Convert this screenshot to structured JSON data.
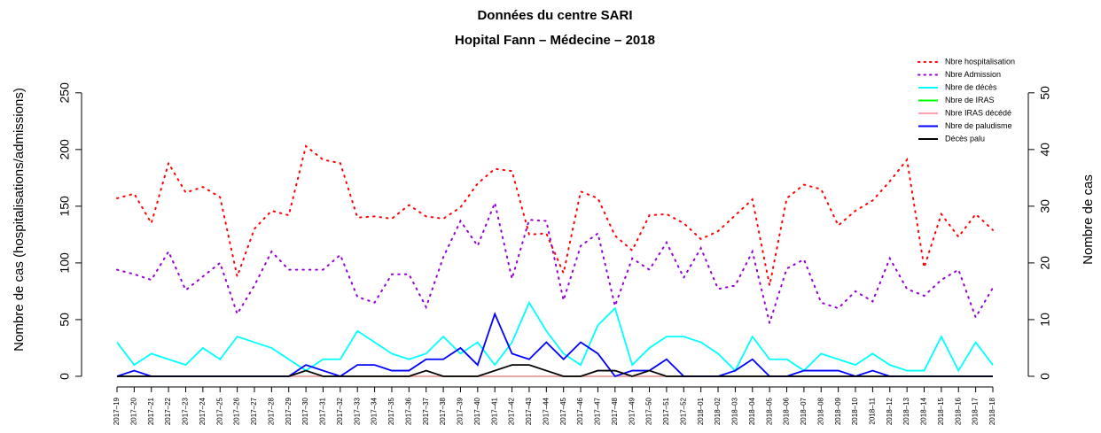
{
  "chart_data": {
    "type": "line",
    "title": "Données du centre SARI",
    "subtitle": "Hopital Fann – Médecine – 2018",
    "y_label": "Nombre de cas (hospitalisations/admissions)",
    "y2_label": "Nombre de cas",
    "categories": [
      "2017–19",
      "2017–20",
      "2017–21",
      "2017–22",
      "2017–23",
      "2017–24",
      "2017–25",
      "2017–26",
      "2017–27",
      "2017–28",
      "2017–29",
      "2017–30",
      "2017–31",
      "2017–32",
      "2017–33",
      "2017–34",
      "2017–35",
      "2017–36",
      "2017–37",
      "2017–38",
      "2017–39",
      "2017–40",
      "2017–41",
      "2017–42",
      "2017–43",
      "2017–44",
      "2017–45",
      "2017–46",
      "2017–47",
      "2017–48",
      "2017–49",
      "2017–50",
      "2017–51",
      "2017–52",
      "2018–01",
      "2018–02",
      "2018–03",
      "2018–04",
      "2018–05",
      "2018–06",
      "2018–07",
      "2018–08",
      "2018–09",
      "2018–10",
      "2018–11",
      "2018–12",
      "2018–13",
      "2018–14",
      "2018–15",
      "2018–16",
      "2018–17",
      "2018–18"
    ],
    "ylim": [
      -9.4,
      285
    ],
    "yticks": [
      0,
      50,
      100,
      150,
      200,
      250
    ],
    "y2lim": [
      -1.88,
      57
    ],
    "y2ticks": [
      0,
      10,
      20,
      30,
      40,
      50
    ],
    "legend": "top-right",
    "series": [
      {
        "name": "Nbre hospitalisation",
        "color": "#ff0000",
        "dash": "dotted",
        "values": [
          157,
          161,
          135,
          188,
          162,
          167,
          158,
          88,
          130,
          146,
          142,
          203,
          191,
          188,
          140,
          141,
          139,
          151,
          141,
          139,
          149,
          170,
          183,
          181,
          125,
          126,
          91,
          163,
          157,
          124,
          111,
          142,
          143,
          135,
          121,
          128,
          142,
          156,
          80,
          157,
          169,
          165,
          133,
          146,
          155,
          172,
          191,
          96,
          143,
          123,
          143,
          129
        ]
      },
      {
        "name": "Nbre Admission",
        "color": "#9400d3",
        "dash": "dotted",
        "values": [
          94,
          90,
          85,
          110,
          76,
          88,
          100,
          55,
          80,
          110,
          94,
          94,
          94,
          107,
          70,
          65,
          90,
          90,
          61,
          105,
          137,
          115,
          153,
          86,
          138,
          137,
          67,
          115,
          126,
          62,
          104,
          94,
          118,
          87,
          113,
          77,
          80,
          110,
          47,
          95,
          103,
          65,
          60,
          75,
          66,
          104,
          77,
          71,
          85,
          94,
          52,
          78
        ]
      },
      {
        "name": "Nbre de décès",
        "color": "#00ffff",
        "axis": "y2",
        "values": [
          6,
          2,
          4,
          3,
          2,
          5,
          3,
          7,
          6,
          5,
          3,
          1,
          3,
          3,
          8,
          6,
          4,
          3,
          4,
          7,
          4,
          6,
          2,
          6,
          13,
          8,
          4,
          2,
          9,
          12,
          2,
          5,
          7,
          7,
          6,
          4,
          1,
          7,
          3,
          3,
          1,
          4,
          3,
          2,
          4,
          2,
          1,
          1,
          7,
          1,
          6,
          2
        ]
      },
      {
        "name": "Nbre de IRAS",
        "color": "#00ff00",
        "axis": "y2",
        "values": [
          0,
          0,
          0,
          0,
          0,
          0,
          0,
          0,
          0,
          0,
          0,
          0,
          0,
          0,
          0,
          0,
          0,
          0,
          0,
          0,
          0,
          0,
          0,
          0,
          0,
          0,
          0,
          0,
          0,
          0,
          0,
          0,
          0,
          0,
          0,
          0,
          0,
          0,
          0,
          0,
          0,
          0,
          0,
          0,
          0,
          0,
          0,
          0,
          0,
          0,
          0,
          0
        ]
      },
      {
        "name": "Nbre IRAS décédé",
        "color": "#ff9eb5",
        "axis": "y2",
        "values": [
          0,
          0,
          0,
          0,
          0,
          0,
          0,
          0,
          0,
          0,
          0,
          0,
          0,
          0,
          0,
          0,
          0,
          0,
          0,
          0,
          0,
          0,
          0,
          0,
          0,
          0,
          0,
          0,
          0,
          0,
          0,
          0,
          0,
          0,
          0,
          0,
          0,
          0,
          0,
          0,
          0,
          0,
          0,
          0,
          0,
          0,
          0,
          0,
          0,
          0,
          0,
          0
        ]
      },
      {
        "name": "Nbre de paludisme",
        "color": "#0000ff",
        "axis": "y2",
        "values": [
          0,
          1,
          0,
          0,
          0,
          0,
          0,
          0,
          0,
          0,
          0,
          2,
          1,
          0,
          2,
          2,
          1,
          1,
          3,
          3,
          5,
          2,
          11,
          4,
          3,
          6,
          3,
          6,
          4,
          0,
          1,
          1,
          3,
          0,
          0,
          0,
          1,
          3,
          0,
          0,
          1,
          1,
          1,
          0,
          1,
          0,
          0,
          0,
          0,
          0,
          0,
          0
        ]
      },
      {
        "name": "Décès palu",
        "color": "#000000",
        "axis": "y2",
        "values": [
          0,
          0,
          0,
          0,
          0,
          0,
          0,
          0,
          0,
          0,
          0,
          1,
          0,
          0,
          0,
          0,
          0,
          0,
          1,
          0,
          0,
          0,
          1,
          2,
          2,
          1,
          0,
          0,
          1,
          1,
          0,
          1,
          0,
          0,
          0,
          0,
          0,
          0,
          0,
          0,
          0,
          0,
          0,
          0,
          0,
          0,
          0,
          0,
          0,
          0,
          0,
          0
        ]
      }
    ]
  }
}
